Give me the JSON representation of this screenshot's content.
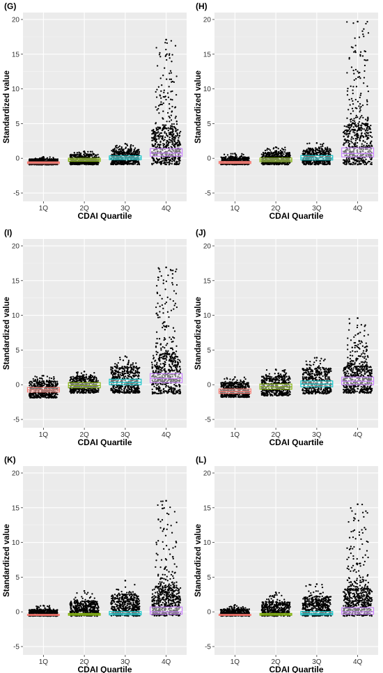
{
  "chart_data": [
    {
      "type": "box",
      "panel_label": "(G)",
      "xlabel": "CDAI Quartile",
      "ylabel": "Standardized value",
      "categories": [
        "1Q",
        "2Q",
        "3Q",
        "4Q"
      ],
      "y_ticks": [
        -5,
        0,
        5,
        10,
        15,
        20
      ],
      "ylim": [
        -6.2,
        21
      ],
      "grid": true,
      "boxes": [
        {
          "category": "1Q",
          "q1": -0.78,
          "median": -0.62,
          "q3": -0.5,
          "min": -0.92,
          "max": 0.2,
          "color": "#F8766D"
        },
        {
          "category": "2Q",
          "q1": -0.45,
          "median": -0.22,
          "q3": 0.02,
          "min": -0.9,
          "max": 1.0,
          "color": "#7CAE00"
        },
        {
          "category": "3Q",
          "q1": -0.2,
          "median": 0.05,
          "q3": 0.35,
          "min": -0.9,
          "max": 2.1,
          "color": "#00BFC4"
        },
        {
          "category": "4Q",
          "q1": 0.3,
          "median": 0.75,
          "q3": 1.4,
          "min": -0.9,
          "max": 17.1,
          "color": "#C77CFF"
        }
      ]
    },
    {
      "type": "box",
      "panel_label": "(H)",
      "xlabel": "CDAI Quartile",
      "ylabel": "Standardized value",
      "categories": [
        "1Q",
        "2Q",
        "3Q",
        "4Q"
      ],
      "y_ticks": [
        -5,
        0,
        5,
        10,
        15,
        20
      ],
      "ylim": [
        -6.2,
        21
      ],
      "grid": true,
      "boxes": [
        {
          "category": "1Q",
          "q1": -0.75,
          "median": -0.6,
          "q3": -0.45,
          "min": -0.9,
          "max": 0.7,
          "color": "#F8766D"
        },
        {
          "category": "2Q",
          "q1": -0.5,
          "median": -0.25,
          "q3": 0.05,
          "min": -0.9,
          "max": 1.6,
          "color": "#7CAE00"
        },
        {
          "category": "3Q",
          "q1": -0.25,
          "median": 0.05,
          "q3": 0.4,
          "min": -0.9,
          "max": 2.2,
          "color": "#00BFC4"
        },
        {
          "category": "4Q",
          "q1": 0.2,
          "median": 0.7,
          "q3": 1.5,
          "min": -0.9,
          "max": 19.7,
          "color": "#C77CFF"
        }
      ]
    },
    {
      "type": "box",
      "panel_label": "(I)",
      "xlabel": "CDAI Quartile",
      "ylabel": "Standardized value",
      "categories": [
        "1Q",
        "2Q",
        "3Q",
        "4Q"
      ],
      "y_ticks": [
        -5,
        0,
        5,
        10,
        15,
        20
      ],
      "ylim": [
        -6.2,
        21
      ],
      "grid": true,
      "boxes": [
        {
          "category": "1Q",
          "q1": -1.05,
          "median": -0.75,
          "q3": -0.4,
          "min": -1.9,
          "max": 1.3,
          "color": "#F8766D"
        },
        {
          "category": "2Q",
          "q1": -0.45,
          "median": -0.1,
          "q3": 0.3,
          "min": -1.2,
          "max": 1.9,
          "color": "#7CAE00"
        },
        {
          "category": "3Q",
          "q1": 0.0,
          "median": 0.35,
          "q3": 0.8,
          "min": -1.2,
          "max": 4.1,
          "color": "#00BFC4"
        },
        {
          "category": "4Q",
          "q1": 0.3,
          "median": 0.9,
          "q3": 1.6,
          "min": -1.3,
          "max": 16.9,
          "color": "#C77CFF"
        }
      ]
    },
    {
      "type": "box",
      "panel_label": "(J)",
      "xlabel": "CDAI Quartile",
      "ylabel": "Standardized value",
      "categories": [
        "1Q",
        "2Q",
        "3Q",
        "4Q"
      ],
      "y_ticks": [
        -5,
        0,
        5,
        10,
        15,
        20
      ],
      "ylim": [
        -6.2,
        21
      ],
      "grid": true,
      "boxes": [
        {
          "category": "1Q",
          "q1": -1.25,
          "median": -0.95,
          "q3": -0.6,
          "min": -1.8,
          "max": 1.1,
          "color": "#F8766D"
        },
        {
          "category": "2Q",
          "q1": -0.65,
          "median": -0.3,
          "q3": 0.1,
          "min": -1.6,
          "max": 2.2,
          "color": "#7CAE00"
        },
        {
          "category": "3Q",
          "q1": -0.3,
          "median": 0.1,
          "q3": 0.55,
          "min": -1.3,
          "max": 3.9,
          "color": "#00BFC4"
        },
        {
          "category": "4Q",
          "q1": 0.0,
          "median": 0.5,
          "q3": 1.1,
          "min": -1.2,
          "max": 9.6,
          "color": "#C77CFF"
        }
      ]
    },
    {
      "type": "box",
      "panel_label": "(K)",
      "xlabel": "CDAI Quartile",
      "ylabel": "Standardized value",
      "categories": [
        "1Q",
        "2Q",
        "3Q",
        "4Q"
      ],
      "y_ticks": [
        -5,
        0,
        5,
        10,
        15,
        20
      ],
      "ylim": [
        -6.2,
        21
      ],
      "grid": true,
      "boxes": [
        {
          "category": "1Q",
          "q1": -0.52,
          "median": -0.45,
          "q3": -0.36,
          "min": -0.6,
          "max": 0.9,
          "color": "#F8766D"
        },
        {
          "category": "2Q",
          "q1": -0.5,
          "median": -0.38,
          "q3": -0.22,
          "min": -0.6,
          "max": 3.0,
          "color": "#7CAE00"
        },
        {
          "category": "3Q",
          "q1": -0.45,
          "median": -0.25,
          "q3": 0.05,
          "min": -0.6,
          "max": 4.5,
          "color": "#00BFC4"
        },
        {
          "category": "4Q",
          "q1": -0.35,
          "median": 0.0,
          "q3": 0.7,
          "min": -0.6,
          "max": 16.0,
          "color": "#C77CFF"
        }
      ]
    },
    {
      "type": "box",
      "panel_label": "(L)",
      "xlabel": "CDAI Quartile",
      "ylabel": "Standardized value",
      "categories": [
        "1Q",
        "2Q",
        "3Q",
        "4Q"
      ],
      "y_ticks": [
        -5,
        0,
        5,
        10,
        15,
        20
      ],
      "ylim": [
        -6.2,
        21
      ],
      "grid": true,
      "boxes": [
        {
          "category": "1Q",
          "q1": -0.52,
          "median": -0.45,
          "q3": -0.36,
          "min": -0.6,
          "max": 1.0,
          "color": "#F8766D"
        },
        {
          "category": "2Q",
          "q1": -0.5,
          "median": -0.38,
          "q3": -0.22,
          "min": -0.6,
          "max": 2.8,
          "color": "#7CAE00"
        },
        {
          "category": "3Q",
          "q1": -0.45,
          "median": -0.25,
          "q3": 0.05,
          "min": -0.6,
          "max": 4.0,
          "color": "#00BFC4"
        },
        {
          "category": "4Q",
          "q1": -0.35,
          "median": 0.0,
          "q3": 0.6,
          "min": -0.6,
          "max": 15.5,
          "color": "#C77CFF"
        }
      ]
    }
  ]
}
